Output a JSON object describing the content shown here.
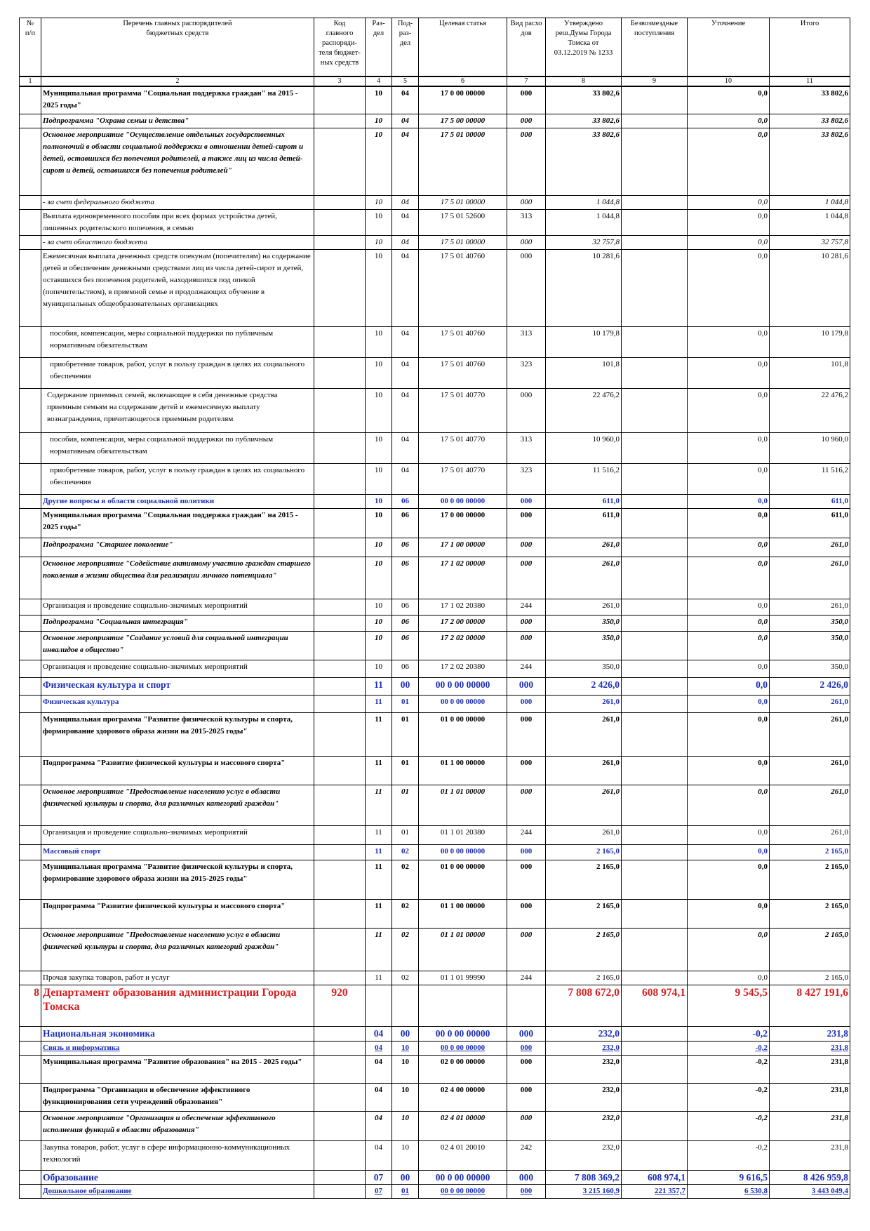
{
  "header": {
    "col_num": "№\nп/п",
    "col_name": "Перечень главных распорядителей\nбюджетных средств",
    "col_code": "Код\nглавного\nраспоряди-\nтеля бюджет-\nных средств",
    "col_razdel": "Раз-\nдел",
    "col_podrazdel": "Под-\nраз-\nдел",
    "col_target": "Целевая статья",
    "col_vid": "Вид расхо\nдов",
    "col_approved": "Утверждено\nреш.Думы Города\nТомска от\n03.12.2019 № 1233",
    "col_free": "Безвозмездные\nпоступления",
    "col_clarify": "Уточнение",
    "col_total": "Итого"
  },
  "column_numbers": [
    "1",
    "2",
    "3",
    "4",
    "5",
    "6",
    "7",
    "8",
    "9",
    "10",
    "11"
  ],
  "rows": [
    {
      "style": "b",
      "h": 40,
      "num": "",
      "name": "Муниципальная программа \"Социальная поддержка граждан\" на 2015 - 2025 годы\"",
      "code": "",
      "razdel": "10",
      "pod": "04",
      "target": "17 0 00 00000",
      "vid": "000",
      "approved": "33 802,6",
      "free": "",
      "clarify": "0,0",
      "total": "33 802,6"
    },
    {
      "style": "bi",
      "h": 17,
      "num": "",
      "name": "Подпрограмма \"Охрана семьи и детства\"",
      "code": "",
      "razdel": "10",
      "pod": "04",
      "target": "17 5 00 00000",
      "vid": "000",
      "approved": "33 802,6",
      "free": "",
      "clarify": "0,0",
      "total": "33 802,6"
    },
    {
      "style": "bi",
      "h": 96,
      "num": "",
      "name": " Основное мероприятие \"Осуществление отдельных государственных полномочий в области социальной поддержки в отношении детей-сирот и детей, оставшихся без попечения родителей, а также лиц из числа детей-сирот и детей, оставшихся без попечения родителей\"",
      "code": "",
      "razdel": "10",
      "pod": "04",
      "target": "17 5 01 00000",
      "vid": "000",
      "approved": "33 802,6",
      "free": "",
      "clarify": "0,0",
      "total": "33 802,6"
    },
    {
      "style": "i",
      "h": 17,
      "num": "",
      "name": " - за счет федерального бюджета",
      "code": "",
      "razdel": "10",
      "pod": "04",
      "target": "17 5 01 00000",
      "vid": "000",
      "approved": "1 044,8",
      "free": "",
      "clarify": "0,0",
      "total": "1 044,8"
    },
    {
      "style": "",
      "h": 37,
      "num": "",
      "name": " Выплата единовременного пособия при всех формах устройства детей, лишенных родительского попечения, в семью",
      "code": "",
      "razdel": "10",
      "pod": "04",
      "target": "17 5 01 52600",
      "vid": "313",
      "approved": "1 044,8",
      "free": "",
      "clarify": "0,0",
      "total": "1 044,8"
    },
    {
      "style": "i",
      "h": 17,
      "num": "",
      "name": " - за счет областного бюджета",
      "code": "",
      "razdel": "10",
      "pod": "04",
      "target": "17 5 01 00000",
      "vid": "000",
      "approved": "32 757,8",
      "free": "",
      "clarify": "0,0",
      "total": "32 757,8"
    },
    {
      "style": "",
      "h": 110,
      "num": "",
      "name": " Ежемесячная выплата денежных средств опекунам (попечителям) на содержание детей и обеспечение денежными средствами лиц из числа детей-сирот и детей, оставшихся без попечения родителей, находившихся под опекой (попечительством), в приемной семье и продолжающих обучение в муниципальных общеобразовательных организациях",
      "code": "",
      "razdel": "10",
      "pod": "04",
      "target": "17 5 01 40760",
      "vid": "000",
      "approved": "10 281,6",
      "free": "",
      "clarify": "0,0",
      "total": "10 281,6"
    },
    {
      "style": "pl",
      "h": 44,
      "num": "",
      "name": "пособия, компенсации, меры социальной поддержки по публичным нормативным обязательствам",
      "code": "",
      "razdel": "10",
      "pod": "04",
      "target": "17 5 01 40760",
      "vid": "313",
      "approved": "10 179,8",
      "free": "",
      "clarify": "0,0",
      "total": "10 179,8"
    },
    {
      "style": "pl",
      "h": 44,
      "num": "",
      "name": "приобретение товаров, работ, услуг в пользу граждан в целях их социального обеспечения",
      "code": "",
      "razdel": "10",
      "pod": "04",
      "target": "17 5 01 40760",
      "vid": "323",
      "approved": "101,8",
      "free": "",
      "clarify": "0,0",
      "total": "101,8"
    },
    {
      "style": "pl2",
      "h": 63,
      "num": "",
      "name": "Содержание приемных семей, включающее в себя денежные средства приемным семьям на содержание детей и ежемесячную выплату вознаграждения, причитающегося приемным родителям",
      "code": "",
      "razdel": "10",
      "pod": "04",
      "target": "17 5 01 40770",
      "vid": "000",
      "approved": "22 476,2",
      "free": "",
      "clarify": "0,0",
      "total": "22 476,2"
    },
    {
      "style": "pl",
      "h": 44,
      "num": "",
      "name": "пособия, компенсации, меры социальной поддержки по публичным нормативным обязательствам",
      "code": "",
      "razdel": "10",
      "pod": "04",
      "target": "17 5 01 40770",
      "vid": "313",
      "approved": "10 960,0",
      "free": "",
      "clarify": "0,0",
      "total": "10 960,0"
    },
    {
      "style": "pl",
      "h": 44,
      "num": "",
      "name": "приобретение товаров, работ, услуг в пользу граждан в целях их социального обеспечения",
      "code": "",
      "razdel": "10",
      "pod": "04",
      "target": "17 5 01 40770",
      "vid": "323",
      "approved": "11 516,2",
      "free": "",
      "clarify": "0,0",
      "total": "11 516,2"
    },
    {
      "style": "blue",
      "h": 19,
      "num": "",
      "name": "Другие вопросы в области социальной политики",
      "code": "",
      "razdel": "10",
      "pod": "06",
      "target": "00 0 00 00000",
      "vid": "000",
      "approved": "611,0",
      "free": "",
      "clarify": "0,0",
      "total": "611,0"
    },
    {
      "style": "b",
      "h": 42,
      "num": "",
      "name": "Муниципальная программа \"Социальная поддержка граждан\" на 2015 - 2025 годы\"",
      "code": "",
      "razdel": "10",
      "pod": "06",
      "target": "17 0 00 00000",
      "vid": "000",
      "approved": "611,0",
      "free": "",
      "clarify": "0,0",
      "total": "611,0"
    },
    {
      "style": "bi",
      "h": 27,
      "num": "",
      "name": "Подпрограмма \"Старшее поколение\"",
      "code": "",
      "razdel": "10",
      "pod": "06",
      "target": "17 1 00 00000",
      "vid": "000",
      "approved": "261,0",
      "free": "",
      "clarify": "0,0",
      "total": "261,0"
    },
    {
      "style": "bi",
      "h": 60,
      "num": "",
      "name": " Основное мероприятие \"Содействие активному участию граждан старшего поколения в жизни общества для реализации личного потенциала\"",
      "code": "",
      "razdel": "10",
      "pod": "06",
      "target": "17 1 02 00000",
      "vid": "000",
      "approved": "261,0",
      "free": "",
      "clarify": "0,0",
      "total": "261,0"
    },
    {
      "style": "",
      "h": 23,
      "num": "",
      "name": " Организация и проведение социально-значимых мероприятий",
      "code": "",
      "razdel": "10",
      "pod": "06",
      "target": "17 1 02 20380",
      "vid": "244",
      "approved": "261,0",
      "free": "",
      "clarify": "0,0",
      "total": "261,0"
    },
    {
      "style": "bi",
      "h": 23,
      "num": "",
      "name": "Подпрограмма \"Социальная интеграция\"",
      "code": "",
      "razdel": "10",
      "pod": "06",
      "target": "17 2 00 00000",
      "vid": "000",
      "approved": "350,0",
      "free": "",
      "clarify": "0,0",
      "total": "350,0"
    },
    {
      "style": "bi",
      "h": 41,
      "num": "",
      "name": " Основное мероприятие \"Создание условий для социальной интеграции инвалидов в общество\"",
      "code": "",
      "razdel": "10",
      "pod": "06",
      "target": "17 2 02 00000",
      "vid": "000",
      "approved": "350,0",
      "free": "",
      "clarify": "0,0",
      "total": "350,0"
    },
    {
      "style": "",
      "h": 25,
      "num": "",
      "name": " Организация и проведение социально-значимых мероприятий",
      "code": "",
      "razdel": "10",
      "pod": "06",
      "target": "17 2 02 20380",
      "vid": "244",
      "approved": "350,0",
      "free": "",
      "clarify": "0,0",
      "total": "350,0"
    },
    {
      "style": "blue big",
      "h": 25,
      "num": "",
      "name": "Физическая культура и спорт",
      "code": "",
      "razdel": "11",
      "pod": "00",
      "target": "00 0 00 00000",
      "vid": "000",
      "approved": "2 426,0",
      "free": "",
      "clarify": "0,0",
      "total": "2 426,0"
    },
    {
      "style": "blue",
      "h": 25,
      "num": "",
      "name": "Физическая культура",
      "code": "",
      "razdel": "11",
      "pod": "01",
      "target": "00 0 00 00000",
      "vid": "000",
      "approved": "261,0",
      "free": "",
      "clarify": "0,0",
      "total": "261,0"
    },
    {
      "style": "b",
      "h": 62,
      "num": "",
      "name": "Муниципальная программа \"Развитие физической культуры и спорта, формирование здорового образа жизни на 2015-2025 годы\"",
      "code": "",
      "razdel": "11",
      "pod": "01",
      "target": "01 0 00 00000",
      "vid": "000",
      "approved": "261,0",
      "free": "",
      "clarify": "0,0",
      "total": "261,0"
    },
    {
      "style": "b",
      "h": 41,
      "num": "",
      "name": "Подпрограмма \"Развитие физической культуры и массового спорта\"",
      "code": "",
      "razdel": "11",
      "pod": "01",
      "target": "01 1 00 00000",
      "vid": "000",
      "approved": "261,0",
      "free": "",
      "clarify": "0,0",
      "total": "261,0"
    },
    {
      "style": "bi",
      "h": 58,
      "num": "",
      "name": " Основное мероприятие \"Предоставление населению услуг в области физической культуры и спорта, для различных категорий граждан\"",
      "code": "",
      "razdel": "11",
      "pod": "01",
      "target": "01 1 01 00000",
      "vid": "000",
      "approved": "261,0",
      "free": "",
      "clarify": "0,0",
      "total": "261,0"
    },
    {
      "style": "",
      "h": 27,
      "num": "",
      "name": " Организация и проведение социально-значимых мероприятий",
      "code": "",
      "razdel": "11",
      "pod": "01",
      "target": "01 1 01 20380",
      "vid": "244",
      "approved": "261,0",
      "free": "",
      "clarify": "0,0",
      "total": "261,0"
    },
    {
      "style": "blue",
      "h": 22,
      "num": "",
      "name": "Массовый спорт",
      "code": "",
      "razdel": "11",
      "pod": "02",
      "target": "00 0 00 00000",
      "vid": "000",
      "approved": "2 165,0",
      "free": "",
      "clarify": "0,0",
      "total": "2 165,0"
    },
    {
      "style": "b",
      "h": 56,
      "num": "",
      "name": "Муниципальная программа \"Развитие физической культуры и спорта, формирование здорового образа жизни на 2015-2025 годы\"",
      "code": "",
      "razdel": "11",
      "pod": "02",
      "target": "01 0 00 00000",
      "vid": "000",
      "approved": "2 165,0",
      "free": "",
      "clarify": "0,0",
      "total": "2 165,0"
    },
    {
      "style": "b",
      "h": 41,
      "num": "",
      "name": "Подпрограмма \"Развитие физической культуры и массового спорта\"",
      "code": "",
      "razdel": "11",
      "pod": "02",
      "target": "01 1 00 00000",
      "vid": "000",
      "approved": "2 165,0",
      "free": "",
      "clarify": "0,0",
      "total": "2 165,0"
    },
    {
      "style": "bi",
      "h": 61,
      "num": "",
      "name": " Основное мероприятие \"Предоставление населению услуг в области физической культуры и спорта, для различных категорий граждан\"",
      "code": "",
      "razdel": "11",
      "pod": "02",
      "target": "01 1 01 00000",
      "vid": "000",
      "approved": "2 165,0",
      "free": "",
      "clarify": "0,0",
      "total": "2 165,0"
    },
    {
      "style": "",
      "h": 17,
      "num": "",
      "name": " Прочая закупка товаров, работ и услуг",
      "code": "",
      "razdel": "11",
      "pod": "02",
      "target": "01 1 01 99990",
      "vid": "244",
      "approved": "2 165,0",
      "free": "",
      "clarify": "0,0",
      "total": "2 165,0"
    },
    {
      "style": "red",
      "h": 59,
      "num": "8",
      "name": "Департамент образования администрации Города Томска",
      "code": "920",
      "razdel": "",
      "pod": "",
      "target": "",
      "vid": "",
      "approved": "7 808 672,0",
      "free": "608 974,1",
      "clarify": "9 545,5",
      "total": "8 427 191,6"
    },
    {
      "style": "blue big",
      "h": 21,
      "num": "",
      "name": "Национальная экономика",
      "code": "",
      "razdel": "04",
      "pod": "00",
      "target": "00 0 00 00000",
      "vid": "000",
      "approved": "232,0",
      "free": "",
      "clarify": "-0,2",
      "total": "231,8"
    },
    {
      "style": "blue ul",
      "h": 17,
      "num": "",
      "name": "Связь и информатика",
      "code": "",
      "razdel": "04",
      "pod": "10",
      "target": "00 0 00 00000",
      "vid": "000",
      "approved": "232,0",
      "free": "",
      "clarify": "-0,2",
      "total": "231,8"
    },
    {
      "style": "b",
      "h": 40,
      "num": "",
      "name": "Муниципальная программа \"Развитие образования\" на 2015 - 2025 годы\"",
      "code": "",
      "razdel": "04",
      "pod": "10",
      "target": "02 0 00 00000",
      "vid": "000",
      "approved": "232,0",
      "free": "",
      "clarify": "-0,2",
      "total": "231,8"
    },
    {
      "style": "b",
      "h": 40,
      "num": "",
      "name": "Подпрограмма \"Организация и обеспечение эффективного функционирования сети учреждений образования\"",
      "code": "",
      "razdel": "04",
      "pod": "10",
      "target": "02 4 00 00000",
      "vid": "000",
      "approved": "232,0",
      "free": "",
      "clarify": "-0,2",
      "total": "231,8"
    },
    {
      "style": "bi",
      "h": 42,
      "num": "",
      "name": " Основное мероприятие \"Организация и обеспечение эффективного исполнения функций в области образования\"",
      "code": "",
      "razdel": "04",
      "pod": "10",
      "target": "02 4 01 00000",
      "vid": "000",
      "approved": "232,0",
      "free": "",
      "clarify": "-0,2",
      "total": "231,8"
    },
    {
      "style": "",
      "h": 42,
      "num": "",
      "name": " Закупка товаров, работ, услуг в сфере информационно-коммуникационных технологий",
      "code": "",
      "razdel": "04",
      "pod": "10",
      "target": "02 4 01 20010",
      "vid": "242",
      "approved": "232,0",
      "free": "",
      "clarify": "-0,2",
      "total": "231,8"
    },
    {
      "style": "blue big",
      "h": 19,
      "num": "",
      "name": "Образование",
      "code": "",
      "razdel": "07",
      "pod": "00",
      "target": "00 0 00 00000",
      "vid": "000",
      "approved": "7 808 369,2",
      "free": "608 974,1",
      "clarify": "9 616,5",
      "total": "8 426 959,8"
    },
    {
      "style": "blue ul",
      "h": 17,
      "num": "",
      "name": "Дошкольное образование",
      "code": "",
      "razdel": "07",
      "pod": "01",
      "target": "00 0 00 00000",
      "vid": "000",
      "approved": "3 215 160,9",
      "free": "221 357,7",
      "clarify": "6 530,8",
      "total": "3 443 049,4"
    }
  ]
}
